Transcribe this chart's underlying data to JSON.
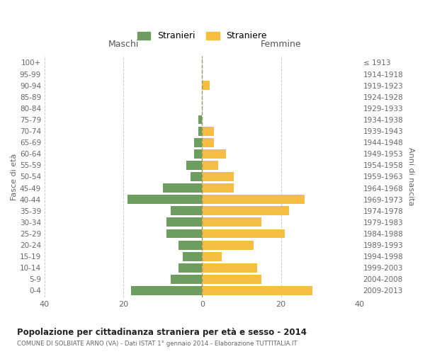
{
  "age_groups": [
    "0-4",
    "5-9",
    "10-14",
    "15-19",
    "20-24",
    "25-29",
    "30-34",
    "35-39",
    "40-44",
    "45-49",
    "50-54",
    "55-59",
    "60-64",
    "65-69",
    "70-74",
    "75-79",
    "80-84",
    "85-89",
    "90-94",
    "95-99",
    "100+"
  ],
  "birth_years": [
    "2009-2013",
    "2004-2008",
    "1999-2003",
    "1994-1998",
    "1989-1993",
    "1984-1988",
    "1979-1983",
    "1974-1978",
    "1969-1973",
    "1964-1968",
    "1959-1963",
    "1954-1958",
    "1949-1953",
    "1944-1948",
    "1939-1943",
    "1934-1938",
    "1929-1933",
    "1924-1928",
    "1919-1923",
    "1914-1918",
    "≤ 1913"
  ],
  "maschi": [
    18,
    8,
    6,
    5,
    6,
    9,
    9,
    8,
    19,
    10,
    3,
    4,
    2,
    2,
    1,
    1,
    0,
    0,
    0,
    0,
    0
  ],
  "femmine": [
    28,
    15,
    14,
    5,
    13,
    21,
    15,
    22,
    26,
    8,
    8,
    4,
    6,
    3,
    3,
    0,
    0,
    0,
    2,
    0,
    0
  ],
  "color_maschi": "#6e9e5f",
  "color_femmine": "#f5be41",
  "grid_color": "#cccccc",
  "dashed_line_color": "#999966",
  "title": "Popolazione per cittadinanza straniera per età e sesso - 2014",
  "subtitle": "COMUNE DI SOLBIATE ARNO (VA) - Dati ISTAT 1° gennaio 2014 - Elaborazione TUTTITALIA.IT",
  "ylabel_left": "Fasce di età",
  "ylabel_right": "Anni di nascita",
  "header_maschi": "Maschi",
  "header_femmine": "Femmine",
  "legend_maschi": "Stranieri",
  "legend_femmine": "Straniere",
  "xlim": [
    -40,
    40
  ],
  "xticks": [
    -40,
    -20,
    0,
    20,
    40
  ],
  "xticklabels": [
    "40",
    "20",
    "0",
    "20",
    "40"
  ]
}
